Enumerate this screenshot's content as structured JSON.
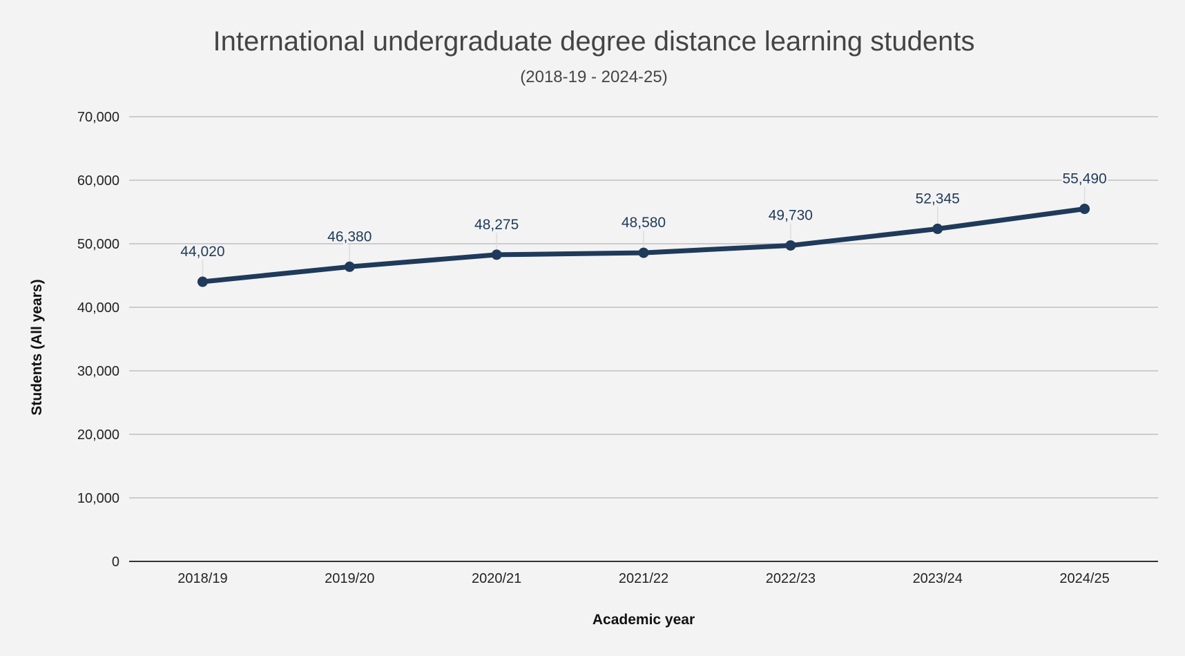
{
  "chart_data": {
    "type": "line",
    "title": "International undergraduate degree distance learning students",
    "subtitle": "(2018-19 - 2024-25)",
    "xlabel": "Academic year",
    "ylabel": "Students (All years)",
    "categories": [
      "2018/19",
      "2019/20",
      "2020/21",
      "2021/22",
      "2022/23",
      "2023/24",
      "2024/25"
    ],
    "series": [
      {
        "name": "Students (All years)",
        "values": [
          44020,
          46380,
          48275,
          48580,
          49730,
          52345,
          55490
        ],
        "labels": [
          "44,020",
          "46,380",
          "48,275",
          "48,580",
          "49,730",
          "52,345",
          "55,490"
        ],
        "color": "#1f3a5a"
      }
    ],
    "ylim": [
      0,
      70000
    ],
    "yticks": [
      0,
      10000,
      20000,
      30000,
      40000,
      50000,
      60000,
      70000
    ],
    "ytick_labels": [
      "0",
      "10,000",
      "20,000",
      "30,000",
      "40,000",
      "50,000",
      "60,000",
      "70,000"
    ],
    "grid": true,
    "legend": "none",
    "data_labels": true
  },
  "colors": {
    "background": "#f3f3f3",
    "gridline": "#c0c0c0",
    "baseline": "#333333",
    "line": "#1f3a5a",
    "leader": "#dddddd",
    "title": "#444444"
  }
}
